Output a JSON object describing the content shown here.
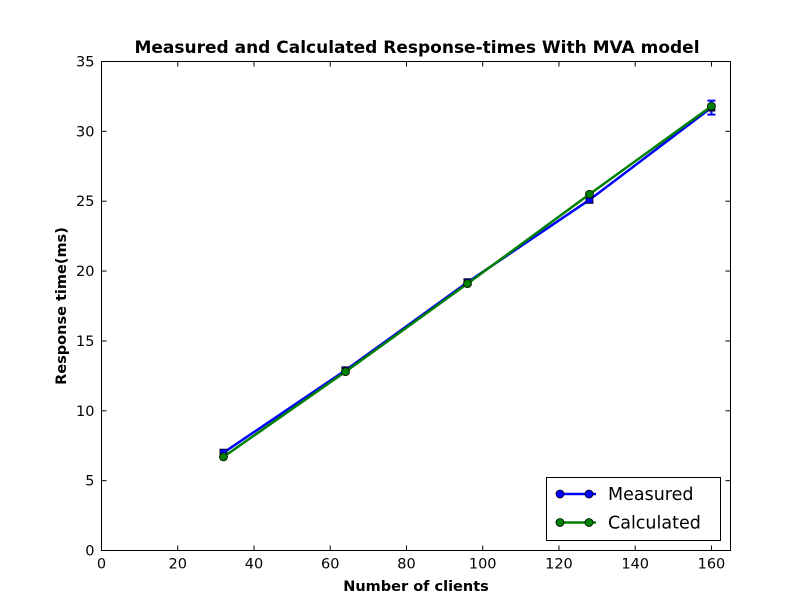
{
  "chart_data": {
    "type": "line",
    "title": "Measured and Calculated Response-times With MVA model",
    "xlabel": "Number of clients",
    "ylabel": "Response time(ms)",
    "xlim": [
      0,
      165
    ],
    "ylim": [
      0,
      35
    ],
    "xticks": [
      0,
      20,
      40,
      60,
      80,
      100,
      120,
      140,
      160
    ],
    "yticks": [
      0,
      5,
      10,
      15,
      20,
      25,
      30,
      35
    ],
    "grid": false,
    "legend_position": "lower-right",
    "series": [
      {
        "name": "Measured",
        "color": "#0000ff",
        "marker": "square",
        "x": [
          32,
          64,
          96,
          128,
          160
        ],
        "y": [
          7.0,
          12.9,
          19.2,
          25.1,
          31.7
        ],
        "yerr": [
          0.2,
          0.2,
          0.2,
          0.2,
          0.5
        ]
      },
      {
        "name": "Calculated",
        "color": "#008000",
        "marker": "circle",
        "x": [
          32,
          64,
          96,
          128,
          160
        ],
        "y": [
          6.7,
          12.8,
          19.1,
          25.5,
          31.8
        ]
      }
    ]
  }
}
